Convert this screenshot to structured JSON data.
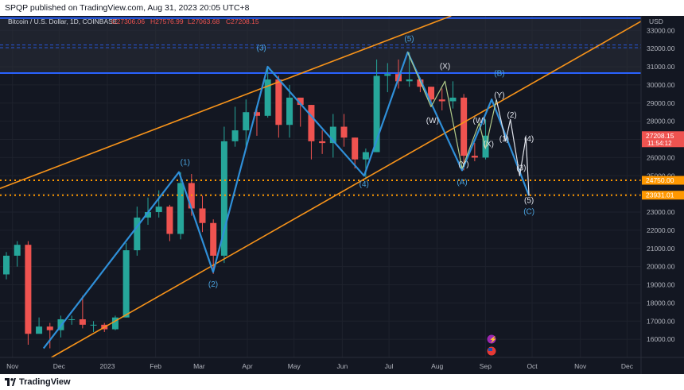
{
  "header": {
    "published_text": "SPQP published on TradingView.com, Aug 31, 2023 20:05 UTC+8"
  },
  "footer": {
    "brand": "TradingView"
  },
  "colors": {
    "background": "#131722",
    "up": "#26a69a",
    "down": "#ef5350",
    "wave_blue": "#2f8fd8",
    "channel_orange": "#f7931a",
    "dotted_orange": "#ff9800",
    "resistance_blue": "#2962ff",
    "projection_white": "#e0e3eb",
    "projection_green": "#b2cc8a",
    "label_blue": "#4aa3df",
    "label_white": "#e0e3eb",
    "axis_text": "#b2b5be"
  },
  "chart_data": {
    "type": "candlestick",
    "title": "Bitcoin / U.S. Dollar, 1D, COINBASE",
    "ohlc_legend": {
      "O": "O27306.06",
      "H": "H27576.99",
      "L": "L27063.68",
      "C": "C27208.15"
    },
    "price_axis": {
      "currency": "USD",
      "ticks": [
        33000,
        32000,
        31000,
        30000,
        29000,
        28000,
        27000,
        26000,
        25000,
        24000,
        23000,
        22000,
        21000,
        20000,
        19000,
        18000,
        17000,
        16000
      ],
      "tick_labels": [
        "33000.00",
        "32000.00",
        "31000.00",
        "30000.00",
        "29000.00",
        "28000.00",
        "27000.00",
        "26000.00",
        "25000.00",
        "24000.00",
        "23000.00",
        "22000.00",
        "21000.00",
        "20000.00",
        "19000.00",
        "18000.00",
        "17000.00",
        "16000.00"
      ],
      "ylim": [
        15000,
        33800
      ]
    },
    "time_axis": {
      "labels": [
        "Nov",
        "Dec",
        "2023",
        "Feb",
        "Mar",
        "Apr",
        "May",
        "Jun",
        "Jul",
        "Aug",
        "Sep",
        "Oct",
        "Nov",
        "Dec"
      ],
      "dates": [
        "2022-11-01",
        "2022-12-01",
        "2023-01-01",
        "2023-02-01",
        "2023-03-01",
        "2023-04-01",
        "2023-05-01",
        "2023-06-01",
        "2023-07-01",
        "2023-08-01",
        "2023-09-01",
        "2023-10-01",
        "2023-11-01",
        "2023-12-01"
      ],
      "xlim": [
        "2022-10-24",
        "2023-12-10"
      ]
    },
    "price_tags": [
      {
        "label": "27208.15",
        "value": 27208.15,
        "sub": "11:54:12",
        "color": "#ef5350"
      },
      {
        "label": "24750.00",
        "value": 24750,
        "color": "#ff9800"
      },
      {
        "label": "23931.01",
        "value": 23931.01,
        "color": "#ff9800"
      }
    ],
    "weekly_candles": [
      {
        "d": "2022-10-24",
        "o": 19570,
        "h": 20800,
        "l": 19300,
        "c": 20600
      },
      {
        "d": "2022-10-31",
        "o": 20600,
        "h": 21400,
        "l": 20000,
        "c": 21200
      },
      {
        "d": "2022-11-07",
        "o": 21200,
        "h": 21400,
        "l": 15700,
        "c": 16300
      },
      {
        "d": "2022-11-14",
        "o": 16300,
        "h": 17200,
        "l": 16400,
        "c": 16700
      },
      {
        "d": "2022-11-21",
        "o": 16700,
        "h": 16900,
        "l": 15500,
        "c": 16500
      },
      {
        "d": "2022-11-28",
        "o": 16500,
        "h": 17300,
        "l": 16100,
        "c": 17100
      },
      {
        "d": "2022-12-05",
        "o": 17100,
        "h": 17300,
        "l": 16800,
        "c": 17100
      },
      {
        "d": "2022-12-12",
        "o": 17100,
        "h": 18400,
        "l": 16600,
        "c": 16800
      },
      {
        "d": "2022-12-19",
        "o": 16800,
        "h": 17000,
        "l": 16400,
        "c": 16800
      },
      {
        "d": "2022-12-26",
        "o": 16800,
        "h": 16900,
        "l": 16400,
        "c": 16550
      },
      {
        "d": "2023-01-02",
        "o": 16550,
        "h": 17300,
        "l": 16500,
        "c": 17200
      },
      {
        "d": "2023-01-09",
        "o": 17200,
        "h": 21300,
        "l": 17200,
        "c": 20900
      },
      {
        "d": "2023-01-16",
        "o": 20900,
        "h": 23300,
        "l": 20600,
        "c": 22700
      },
      {
        "d": "2023-01-23",
        "o": 22700,
        "h": 23800,
        "l": 22300,
        "c": 23000
      },
      {
        "d": "2023-01-30",
        "o": 23000,
        "h": 24200,
        "l": 22700,
        "c": 23300
      },
      {
        "d": "2023-02-06",
        "o": 23300,
        "h": 23400,
        "l": 21400,
        "c": 21800
      },
      {
        "d": "2023-02-13",
        "o": 21800,
        "h": 25200,
        "l": 21500,
        "c": 24600
      },
      {
        "d": "2023-02-20",
        "o": 24600,
        "h": 25100,
        "l": 22800,
        "c": 23200
      },
      {
        "d": "2023-02-27",
        "o": 23200,
        "h": 23900,
        "l": 21900,
        "c": 22400
      },
      {
        "d": "2023-03-06",
        "o": 22400,
        "h": 22600,
        "l": 19600,
        "c": 20600
      },
      {
        "d": "2023-03-13",
        "o": 20600,
        "h": 27700,
        "l": 20200,
        "c": 26900
      },
      {
        "d": "2023-03-20",
        "o": 26900,
        "h": 28800,
        "l": 26600,
        "c": 27500
      },
      {
        "d": "2023-03-27",
        "o": 27500,
        "h": 29200,
        "l": 26600,
        "c": 28500
      },
      {
        "d": "2023-04-03",
        "o": 28500,
        "h": 28700,
        "l": 27200,
        "c": 28300
      },
      {
        "d": "2023-04-10",
        "o": 28300,
        "h": 31000,
        "l": 28200,
        "c": 30300
      },
      {
        "d": "2023-04-17",
        "o": 30300,
        "h": 30500,
        "l": 27100,
        "c": 27800
      },
      {
        "d": "2023-04-24",
        "o": 27800,
        "h": 30000,
        "l": 27100,
        "c": 29300
      },
      {
        "d": "2023-05-01",
        "o": 29300,
        "h": 29300,
        "l": 27700,
        "c": 28900
      },
      {
        "d": "2023-05-08",
        "o": 28900,
        "h": 28900,
        "l": 25900,
        "c": 26900
      },
      {
        "d": "2023-05-15",
        "o": 26900,
        "h": 27500,
        "l": 26200,
        "c": 26800
      },
      {
        "d": "2023-05-22",
        "o": 26800,
        "h": 28400,
        "l": 26000,
        "c": 27700
      },
      {
        "d": "2023-05-29",
        "o": 27700,
        "h": 28400,
        "l": 26600,
        "c": 27100
      },
      {
        "d": "2023-06-05",
        "o": 27100,
        "h": 27100,
        "l": 25400,
        "c": 25900
      },
      {
        "d": "2023-06-12",
        "o": 25900,
        "h": 26500,
        "l": 24800,
        "c": 26300
      },
      {
        "d": "2023-06-19",
        "o": 26300,
        "h": 31400,
        "l": 26300,
        "c": 30500
      },
      {
        "d": "2023-06-26",
        "o": 30500,
        "h": 31200,
        "l": 29600,
        "c": 30600
      },
      {
        "d": "2023-07-03",
        "o": 30600,
        "h": 31400,
        "l": 29800,
        "c": 30200
      },
      {
        "d": "2023-07-10",
        "o": 30200,
        "h": 31800,
        "l": 29900,
        "c": 30300
      },
      {
        "d": "2023-07-17",
        "o": 30300,
        "h": 30400,
        "l": 29600,
        "c": 29900
      },
      {
        "d": "2023-07-24",
        "o": 29900,
        "h": 29900,
        "l": 28900,
        "c": 29200
      },
      {
        "d": "2023-07-31",
        "o": 29200,
        "h": 29800,
        "l": 28600,
        "c": 29100
      },
      {
        "d": "2023-08-07",
        "o": 29100,
        "h": 30200,
        "l": 28700,
        "c": 29300
      },
      {
        "d": "2023-08-14",
        "o": 29300,
        "h": 29500,
        "l": 25300,
        "c": 26100
      },
      {
        "d": "2023-08-21",
        "o": 26100,
        "h": 26800,
        "l": 25800,
        "c": 26000
      },
      {
        "d": "2023-08-28",
        "o": 26000,
        "h": 28100,
        "l": 25900,
        "c": 27208.15
      }
    ],
    "wave_labels": [
      {
        "text": "(1)",
        "d": "2023-02-20",
        "v": 25600,
        "color": "blue"
      },
      {
        "text": "(2)",
        "d": "2023-03-10",
        "v": 18900,
        "color": "blue"
      },
      {
        "text": "(3)",
        "d": "2023-04-10",
        "v": 31900,
        "color": "blue"
      },
      {
        "text": "(4)",
        "d": "2023-06-15",
        "v": 24400,
        "color": "blue"
      },
      {
        "text": "(5)",
        "d": "2023-07-14",
        "v": 32400,
        "color": "blue"
      },
      {
        "text": "(B)",
        "d": "2023-09-10",
        "v": 30500,
        "color": "blue"
      },
      {
        "text": "(A)",
        "d": "2023-08-17",
        "v": 24500,
        "color": "blue"
      },
      {
        "text": "(C)",
        "d": "2023-09-29",
        "v": 22900,
        "color": "blue"
      },
      {
        "text": "(X)",
        "d": "2023-08-06",
        "v": 30900,
        "color": "white"
      },
      {
        "text": "(W)",
        "d": "2023-07-29",
        "v": 27900,
        "color": "white"
      },
      {
        "text": "(W)",
        "d": "2023-08-28",
        "v": 27900,
        "color": "white"
      },
      {
        "text": "(Y)",
        "d": "2023-09-10",
        "v": 29300,
        "color": "white"
      },
      {
        "text": "(Y)",
        "d": "2023-08-18",
        "v": 25500,
        "color": "white"
      },
      {
        "text": "(X)",
        "d": "2023-09-03",
        "v": 26600,
        "color": "white"
      },
      {
        "text": "(2)",
        "d": "2023-09-18",
        "v": 28200,
        "color": "white"
      },
      {
        "text": "(1)",
        "d": "2023-09-13",
        "v": 26900,
        "color": "white"
      },
      {
        "text": "(4)",
        "d": "2023-09-29",
        "v": 26900,
        "color": "white"
      },
      {
        "text": "(3)",
        "d": "2023-09-24",
        "v": 25300,
        "color": "white"
      },
      {
        "text": "(5)",
        "d": "2023-09-29",
        "v": 23500,
        "color": "white"
      }
    ]
  }
}
